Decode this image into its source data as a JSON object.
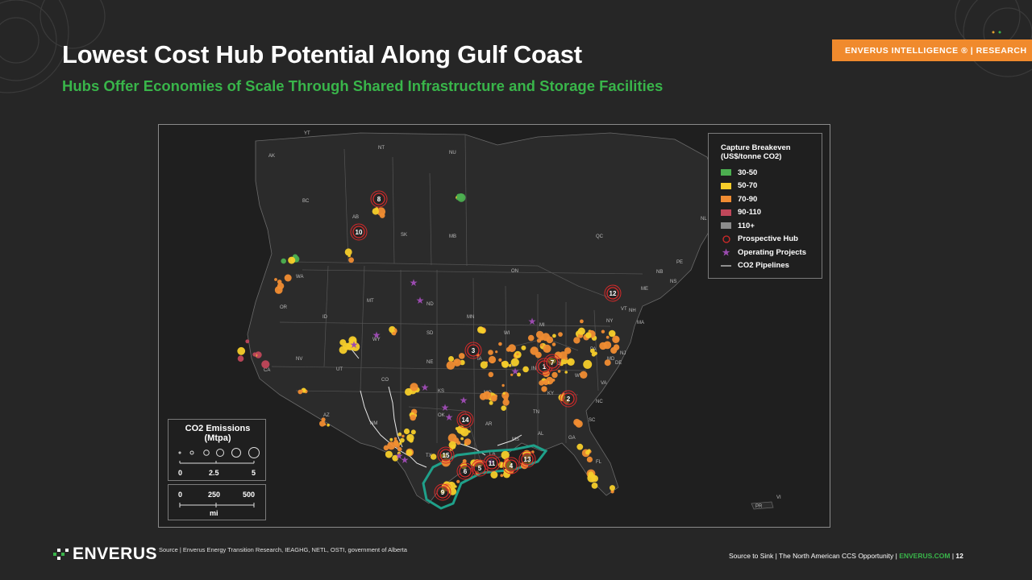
{
  "header": {
    "title": "Lowest Cost Hub Potential Along Gulf Coast",
    "subtitle": "Hubs Offer Economies of Scale Through Shared Infrastructure and Storage Facilities",
    "brand_tag": "ENVERUS INTELLIGENCE ® | RESEARCH"
  },
  "legend": {
    "title_line1": "Capture Breakeven",
    "title_line2": "(US$/tonne CO2)",
    "ranges": [
      {
        "label": "30-50",
        "color": "#4caf50"
      },
      {
        "label": "50-70",
        "color": "#f6cd2a"
      },
      {
        "label": "70-90",
        "color": "#f08c32"
      },
      {
        "label": "90-110",
        "color": "#c0475a"
      },
      {
        "label": "110+",
        "color": "#8c8c8c"
      }
    ],
    "prospective_hub": "Prospective Hub",
    "operating_projects": "Operating Projects",
    "pipelines": "CO2 Pipelines"
  },
  "emissions_legend": {
    "title_line1": "CO2 Emissions",
    "title_line2": "(Mtpa)",
    "ticks": [
      "0",
      "2.5",
      "5"
    ]
  },
  "scale_bar": {
    "ticks": [
      "0",
      "250",
      "500"
    ],
    "unit": "mi"
  },
  "map": {
    "region_labels": [
      "YT",
      "NT",
      "NU",
      "AK",
      "BC",
      "AB",
      "SK",
      "MB",
      "QC",
      "ON",
      "NL",
      "PE",
      "NB",
      "NS",
      "ME",
      "VT",
      "NH",
      "MA",
      "NY",
      "WA",
      "OR",
      "ID",
      "MT",
      "ND",
      "SD",
      "WY",
      "NE",
      "NV",
      "UT",
      "CO",
      "KS",
      "CA",
      "AZ",
      "NM",
      "TX",
      "OK",
      "MO",
      "IA",
      "MN",
      "WI",
      "MI",
      "IL",
      "IN",
      "OH",
      "PA",
      "NJ",
      "DE",
      "MD",
      "WV",
      "VA",
      "KY",
      "TN",
      "NC",
      "SC",
      "GA",
      "AL",
      "MS",
      "AR",
      "LA",
      "FL",
      "PR",
      "VI"
    ],
    "hubs": [
      "1",
      "2",
      "3",
      "4",
      "5",
      "6",
      "7",
      "8",
      "9",
      "10",
      "11",
      "12",
      "13",
      "14",
      "15"
    ]
  },
  "footer": {
    "logo": "ENVERUS",
    "source": "Source | Enverus Energy Transition Research, IEAGHG, NETL, OSTI, government of Alberta",
    "doc": "Source to Sink | The North American CCS Opportunity | ",
    "site": "ENVERUS.COM",
    "page_sep": " | ",
    "page": "12"
  }
}
